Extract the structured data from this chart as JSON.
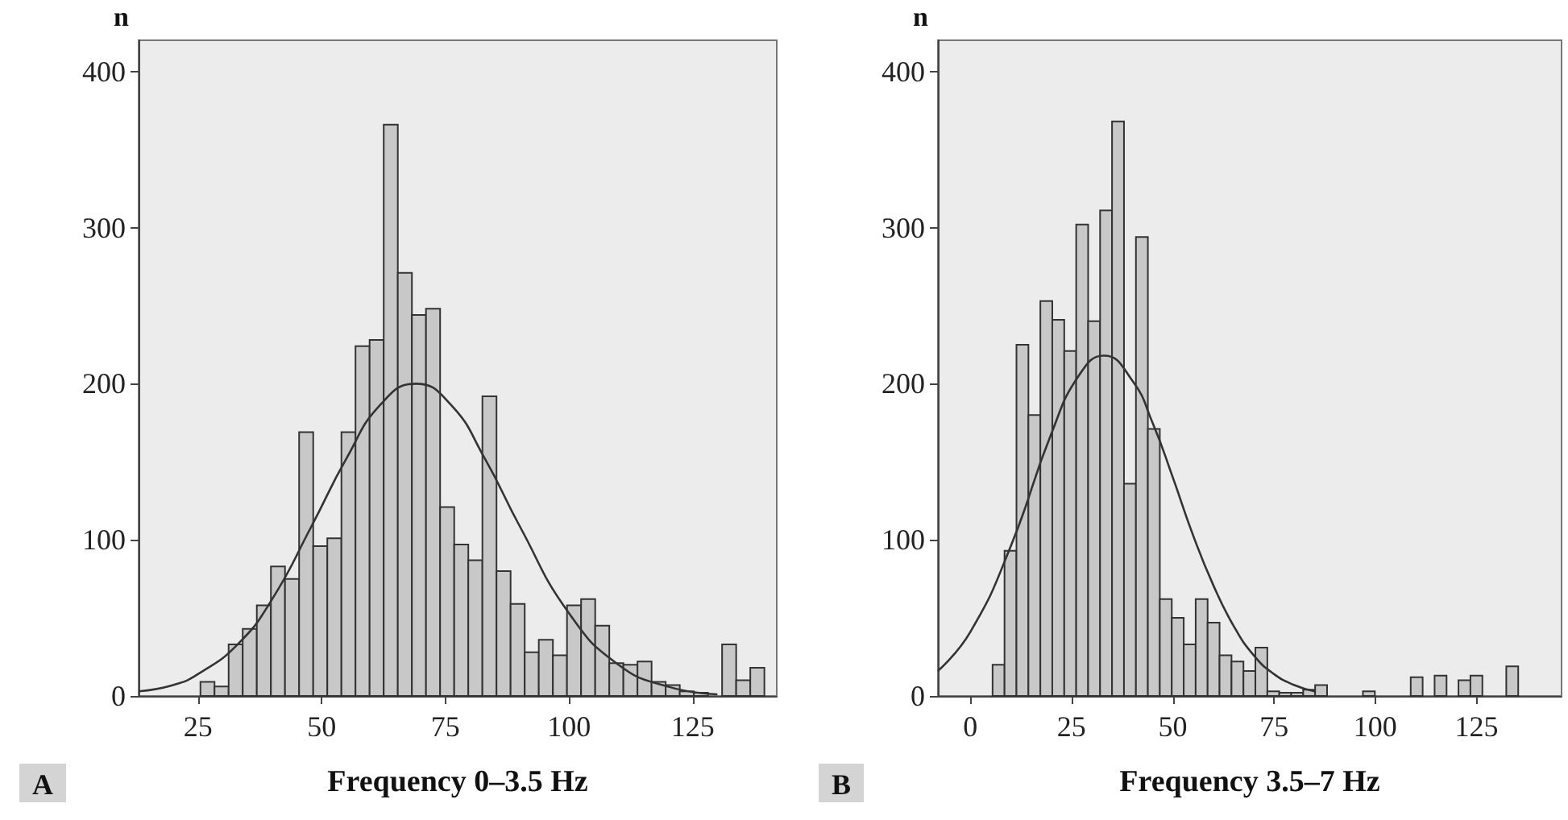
{
  "chart_data": [
    {
      "type": "histogram",
      "xlabel": "Frequency 0–3.5 Hz",
      "ylabel": "n",
      "annotations": [
        "A"
      ],
      "xlim": [
        13,
        142
      ],
      "xticks": [
        25,
        50,
        75,
        100,
        125
      ],
      "ylim": [
        0,
        420
      ],
      "yticks": [
        0,
        100,
        200,
        300,
        400
      ],
      "series": [
        {
          "color": "#c8c8c8",
          "bins": [
            25.5,
            28.35,
            31.2,
            34.05,
            36.9,
            39.75,
            42.6,
            45.45,
            48.3,
            51.15,
            54,
            56.85,
            59.7,
            62.55,
            65.4,
            68.25,
            71.1,
            73.95,
            76.8,
            79.65,
            82.5,
            85.35,
            88.2,
            91.05,
            93.9,
            96.75,
            99.6,
            102.45,
            105.3,
            108.15,
            111,
            113.85,
            116.7,
            119.55,
            122.4,
            125.25,
            128.1,
            130.95,
            133.8,
            136.65,
            139.5
          ],
          "values": [
            9,
            6,
            33,
            43,
            58,
            83,
            75,
            169,
            96,
            101,
            169,
            224,
            228,
            366,
            271,
            244,
            248,
            121,
            97,
            87,
            192,
            80,
            59,
            28,
            36,
            26,
            58,
            62,
            45,
            21,
            20,
            22,
            9,
            7,
            3,
            2,
            0,
            33,
            10,
            18
          ]
        },
        {
          "type": "line",
          "color": "#333333",
          "x": [
            13,
            20,
            25,
            33,
            40,
            48,
            55,
            62,
            69,
            76,
            83,
            90,
            100,
            110,
            120,
            130
          ],
          "values": [
            3,
            7,
            14,
            33,
            62,
            109,
            152,
            187,
            200,
            187,
            152,
            109,
            53,
            20,
            6,
            1
          ]
        }
      ]
    },
    {
      "type": "histogram",
      "xlabel": "Frequency 3.5–7 Hz",
      "ylabel": "n",
      "annotations": [
        "B"
      ],
      "xlim": [
        -8,
        146
      ],
      "xticks": [
        0,
        25,
        50,
        75,
        100,
        125
      ],
      "ylim": [
        0,
        420
      ],
      "yticks": [
        0,
        100,
        200,
        300,
        400
      ],
      "series": [
        {
          "color": "#c8c8c8",
          "bins": [
            5.5,
            8.45,
            11.4,
            14.35,
            17.3,
            20.25,
            23.2,
            26.15,
            29.1,
            32.05,
            35,
            37.95,
            40.9,
            43.85,
            46.8,
            49.75,
            52.7,
            55.65,
            58.6,
            61.55,
            64.5,
            67.45,
            70.4,
            73.35,
            76.3,
            79.25,
            82.2,
            85.15,
            88.1,
            91.05,
            94,
            96.95,
            99.9,
            102.85,
            105.8,
            108.75,
            111.7,
            114.65,
            117.6,
            120.55,
            123.5,
            126.45,
            129.4,
            132.35,
            135.3
          ],
          "values": [
            20,
            93,
            225,
            180,
            253,
            241,
            221,
            302,
            240,
            311,
            368,
            136,
            294,
            171,
            62,
            50,
            33,
            62,
            47,
            26,
            22,
            16,
            31,
            3,
            2,
            2,
            4,
            7,
            0,
            0,
            0,
            3,
            0,
            0,
            0,
            12,
            0,
            13,
            0,
            10,
            13,
            0,
            0,
            19
          ]
        },
        {
          "type": "line",
          "color": "#333333",
          "x": [
            -8,
            0,
            10,
            20,
            27,
            33,
            40,
            45,
            50,
            55,
            60,
            65,
            70,
            75,
            80,
            85
          ],
          "values": [
            16,
            41,
            96,
            168,
            206,
            218,
            202,
            175,
            140,
            103,
            71,
            45,
            26,
            14,
            7,
            3
          ]
        }
      ]
    }
  ]
}
